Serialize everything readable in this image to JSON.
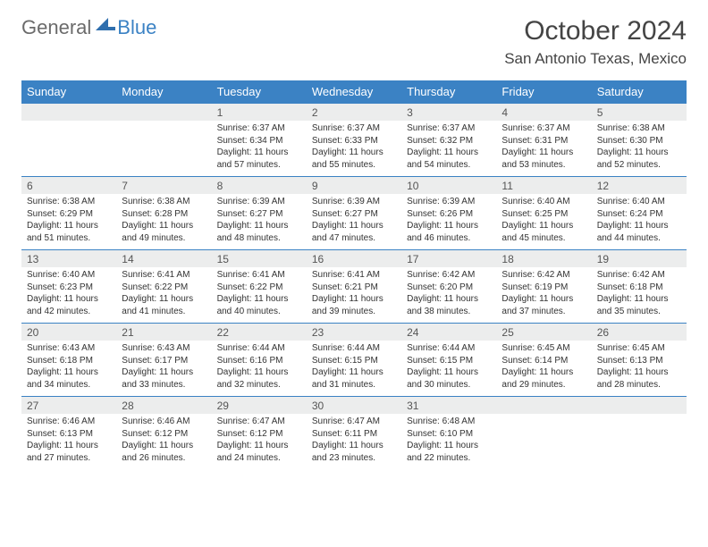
{
  "logo": {
    "text1": "General",
    "text2": "Blue"
  },
  "title": "October 2024",
  "location": "San Antonio Texas, Mexico",
  "colors": {
    "header_bg": "#3b82c4",
    "header_text": "#ffffff",
    "daynum_bg": "#eceded",
    "border": "#3b82c4",
    "logo_gray": "#6b6b6b",
    "logo_blue": "#3b82c4"
  },
  "font": {
    "title_size": 30,
    "location_size": 17,
    "th_size": 13,
    "daynum_size": 12,
    "body_size": 10
  },
  "day_names": [
    "Sunday",
    "Monday",
    "Tuesday",
    "Wednesday",
    "Thursday",
    "Friday",
    "Saturday"
  ],
  "first_weekday": 2,
  "days": [
    {
      "n": 1,
      "sunrise": "6:37 AM",
      "sunset": "6:34 PM",
      "daylight": "11 hours and 57 minutes."
    },
    {
      "n": 2,
      "sunrise": "6:37 AM",
      "sunset": "6:33 PM",
      "daylight": "11 hours and 55 minutes."
    },
    {
      "n": 3,
      "sunrise": "6:37 AM",
      "sunset": "6:32 PM",
      "daylight": "11 hours and 54 minutes."
    },
    {
      "n": 4,
      "sunrise": "6:37 AM",
      "sunset": "6:31 PM",
      "daylight": "11 hours and 53 minutes."
    },
    {
      "n": 5,
      "sunrise": "6:38 AM",
      "sunset": "6:30 PM",
      "daylight": "11 hours and 52 minutes."
    },
    {
      "n": 6,
      "sunrise": "6:38 AM",
      "sunset": "6:29 PM",
      "daylight": "11 hours and 51 minutes."
    },
    {
      "n": 7,
      "sunrise": "6:38 AM",
      "sunset": "6:28 PM",
      "daylight": "11 hours and 49 minutes."
    },
    {
      "n": 8,
      "sunrise": "6:39 AM",
      "sunset": "6:27 PM",
      "daylight": "11 hours and 48 minutes."
    },
    {
      "n": 9,
      "sunrise": "6:39 AM",
      "sunset": "6:27 PM",
      "daylight": "11 hours and 47 minutes."
    },
    {
      "n": 10,
      "sunrise": "6:39 AM",
      "sunset": "6:26 PM",
      "daylight": "11 hours and 46 minutes."
    },
    {
      "n": 11,
      "sunrise": "6:40 AM",
      "sunset": "6:25 PM",
      "daylight": "11 hours and 45 minutes."
    },
    {
      "n": 12,
      "sunrise": "6:40 AM",
      "sunset": "6:24 PM",
      "daylight": "11 hours and 44 minutes."
    },
    {
      "n": 13,
      "sunrise": "6:40 AM",
      "sunset": "6:23 PM",
      "daylight": "11 hours and 42 minutes."
    },
    {
      "n": 14,
      "sunrise": "6:41 AM",
      "sunset": "6:22 PM",
      "daylight": "11 hours and 41 minutes."
    },
    {
      "n": 15,
      "sunrise": "6:41 AM",
      "sunset": "6:22 PM",
      "daylight": "11 hours and 40 minutes."
    },
    {
      "n": 16,
      "sunrise": "6:41 AM",
      "sunset": "6:21 PM",
      "daylight": "11 hours and 39 minutes."
    },
    {
      "n": 17,
      "sunrise": "6:42 AM",
      "sunset": "6:20 PM",
      "daylight": "11 hours and 38 minutes."
    },
    {
      "n": 18,
      "sunrise": "6:42 AM",
      "sunset": "6:19 PM",
      "daylight": "11 hours and 37 minutes."
    },
    {
      "n": 19,
      "sunrise": "6:42 AM",
      "sunset": "6:18 PM",
      "daylight": "11 hours and 35 minutes."
    },
    {
      "n": 20,
      "sunrise": "6:43 AM",
      "sunset": "6:18 PM",
      "daylight": "11 hours and 34 minutes."
    },
    {
      "n": 21,
      "sunrise": "6:43 AM",
      "sunset": "6:17 PM",
      "daylight": "11 hours and 33 minutes."
    },
    {
      "n": 22,
      "sunrise": "6:44 AM",
      "sunset": "6:16 PM",
      "daylight": "11 hours and 32 minutes."
    },
    {
      "n": 23,
      "sunrise": "6:44 AM",
      "sunset": "6:15 PM",
      "daylight": "11 hours and 31 minutes."
    },
    {
      "n": 24,
      "sunrise": "6:44 AM",
      "sunset": "6:15 PM",
      "daylight": "11 hours and 30 minutes."
    },
    {
      "n": 25,
      "sunrise": "6:45 AM",
      "sunset": "6:14 PM",
      "daylight": "11 hours and 29 minutes."
    },
    {
      "n": 26,
      "sunrise": "6:45 AM",
      "sunset": "6:13 PM",
      "daylight": "11 hours and 28 minutes."
    },
    {
      "n": 27,
      "sunrise": "6:46 AM",
      "sunset": "6:13 PM",
      "daylight": "11 hours and 27 minutes."
    },
    {
      "n": 28,
      "sunrise": "6:46 AM",
      "sunset": "6:12 PM",
      "daylight": "11 hours and 26 minutes."
    },
    {
      "n": 29,
      "sunrise": "6:47 AM",
      "sunset": "6:12 PM",
      "daylight": "11 hours and 24 minutes."
    },
    {
      "n": 30,
      "sunrise": "6:47 AM",
      "sunset": "6:11 PM",
      "daylight": "11 hours and 23 minutes."
    },
    {
      "n": 31,
      "sunrise": "6:48 AM",
      "sunset": "6:10 PM",
      "daylight": "11 hours and 22 minutes."
    }
  ],
  "labels": {
    "sunrise": "Sunrise:",
    "sunset": "Sunset:",
    "daylight": "Daylight:"
  }
}
